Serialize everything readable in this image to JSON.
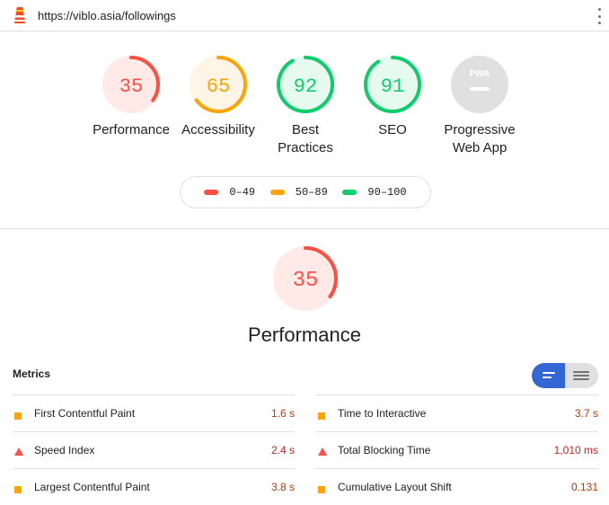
{
  "address_bar": {
    "url": "https://viblo.asia/followings"
  },
  "colors": {
    "fail": "#ff4e42",
    "average": "#ffa400",
    "pass": "#0cce6b",
    "pwa": "#9e9e9e",
    "accent": "#3367d6"
  },
  "categories": [
    {
      "id": "performance",
      "score": 35,
      "label": "Performance",
      "rating": "fail"
    },
    {
      "id": "accessibility",
      "score": 65,
      "label": "Accessibility",
      "rating": "average"
    },
    {
      "id": "best-practices",
      "score": 92,
      "label_line1": "Best",
      "label_line2": "Practices",
      "rating": "pass"
    },
    {
      "id": "seo",
      "score": 91,
      "label": "SEO",
      "rating": "pass"
    },
    {
      "id": "pwa",
      "badge": "PWA",
      "label_line1": "Progressive",
      "label_line2": "Web App",
      "rating": "pwa"
    }
  ],
  "legend": [
    {
      "range": "0–49",
      "rating": "fail"
    },
    {
      "range": "50–89",
      "rating": "average"
    },
    {
      "range": "90–100",
      "rating": "pass"
    }
  ],
  "performance_section": {
    "score": 35,
    "title": "Performance"
  },
  "metrics": {
    "title": "Metrics",
    "left": [
      {
        "name": "First Contentful Paint",
        "value": "1.6 s",
        "rating": "average"
      },
      {
        "name": "Speed Index",
        "value": "2.4 s",
        "rating": "fail"
      },
      {
        "name": "Largest Contentful Paint",
        "value": "3.8 s",
        "rating": "average"
      }
    ],
    "right": [
      {
        "name": "Time to Interactive",
        "value": "3.7 s",
        "rating": "average"
      },
      {
        "name": "Total Blocking Time",
        "value": "1,010 ms",
        "rating": "fail"
      },
      {
        "name": "Cumulative Layout Shift",
        "value": "0.131",
        "rating": "average"
      }
    ]
  }
}
